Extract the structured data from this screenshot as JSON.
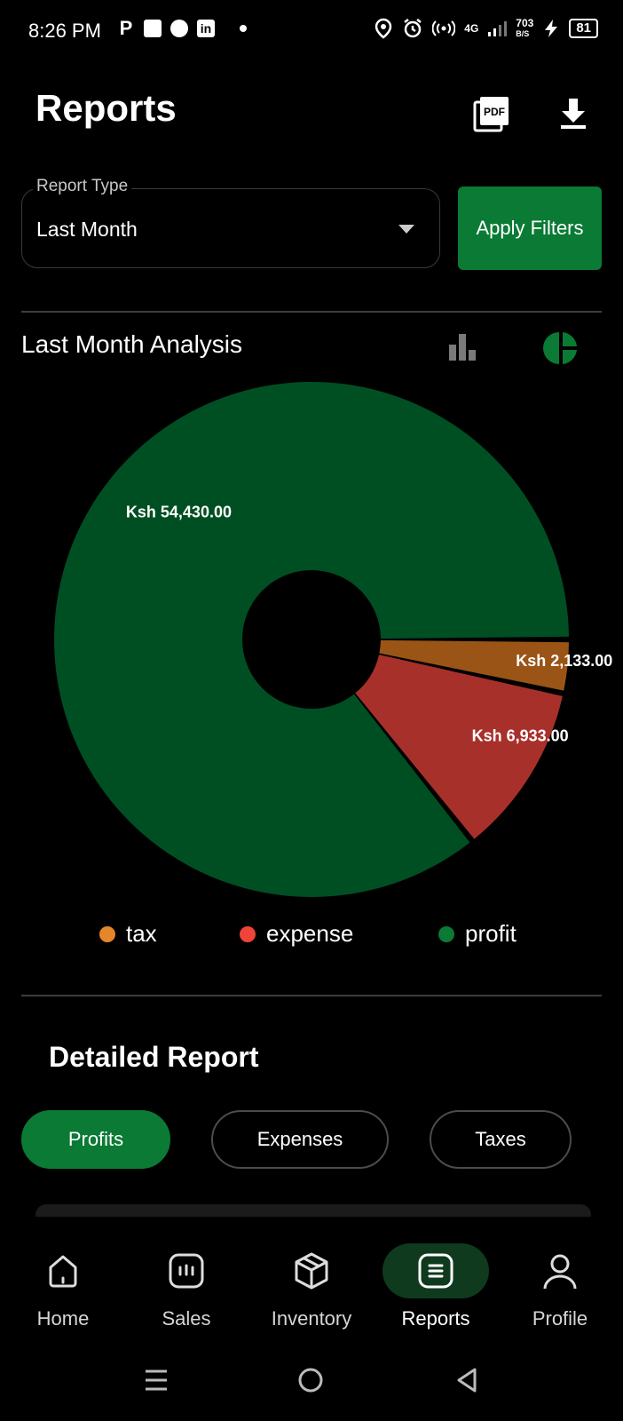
{
  "status_bar": {
    "time": "8:26 PM",
    "network": "4G",
    "speed": "703",
    "speed_unit": "B/S",
    "battery": "81"
  },
  "header": {
    "title": "Reports",
    "pdf_label": "PDF"
  },
  "filter": {
    "label": "Report Type",
    "value": "Last Month",
    "apply_label": "Apply Filters"
  },
  "analysis": {
    "title": "Last Month  Analysis"
  },
  "chart_data": {
    "type": "pie",
    "donut": true,
    "categories": [
      "profit",
      "tax",
      "expense"
    ],
    "values": [
      54430.0,
      2133.0,
      6933.0
    ],
    "labels": [
      "Ksh 54,430.00",
      "Ksh 2,133.00",
      "Ksh 6,933.00"
    ],
    "colors": [
      "#004f22",
      "#9a5416",
      "#a8302a"
    ],
    "legend": [
      {
        "name": "tax",
        "color": "#e5862a"
      },
      {
        "name": "expense",
        "color": "#f0433a"
      },
      {
        "name": "profit",
        "color": "#0a7a34"
      }
    ],
    "legend_position": "bottom"
  },
  "detail": {
    "title": "Detailed Report",
    "tabs": [
      "Profits",
      "Expenses",
      "Taxes"
    ]
  },
  "nav": {
    "items": [
      "Home",
      "Sales",
      "Inventory",
      "Reports",
      "Profile"
    ]
  },
  "colors": {
    "accent": "#0a7a34",
    "background": "#000000"
  }
}
